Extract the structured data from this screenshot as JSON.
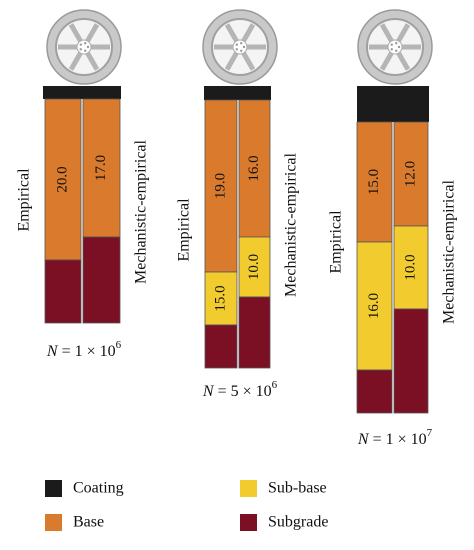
{
  "sections": [
    {
      "empirical_label": "Empirical",
      "mechanistic_label": "Mechanistic-empirical",
      "empirical": {
        "base": "20.0"
      },
      "mechanistic": {
        "base": "17.0"
      },
      "n_label": {
        "symbol": "N",
        "expression": " = 1 × 10",
        "exponent": "6"
      }
    },
    {
      "empirical_label": "Empirical",
      "mechanistic_label": "Mechanistic-empirical",
      "empirical": {
        "base": "19.0",
        "sub_base": "15.0"
      },
      "mechanistic": {
        "base": "16.0",
        "sub_base": "10.0"
      },
      "n_label": {
        "symbol": "N",
        "expression": " = 5 × 10",
        "exponent": "6"
      }
    },
    {
      "empirical_label": "Empirical",
      "mechanistic_label": "Mechanistic-empirical",
      "empirical": {
        "base": "15.0",
        "sub_base": "16.0"
      },
      "mechanistic": {
        "base": "12.0",
        "sub_base": "10.0"
      },
      "n_label": {
        "symbol": "N",
        "expression": " = 1 × 10",
        "exponent": "7"
      }
    }
  ],
  "legend": [
    {
      "key": "coating",
      "label": "Coating"
    },
    {
      "key": "sub_base",
      "label": "Sub-base"
    },
    {
      "key": "base",
      "label": "Base"
    },
    {
      "key": "subgrade",
      "label": "Subgrade"
    }
  ]
}
